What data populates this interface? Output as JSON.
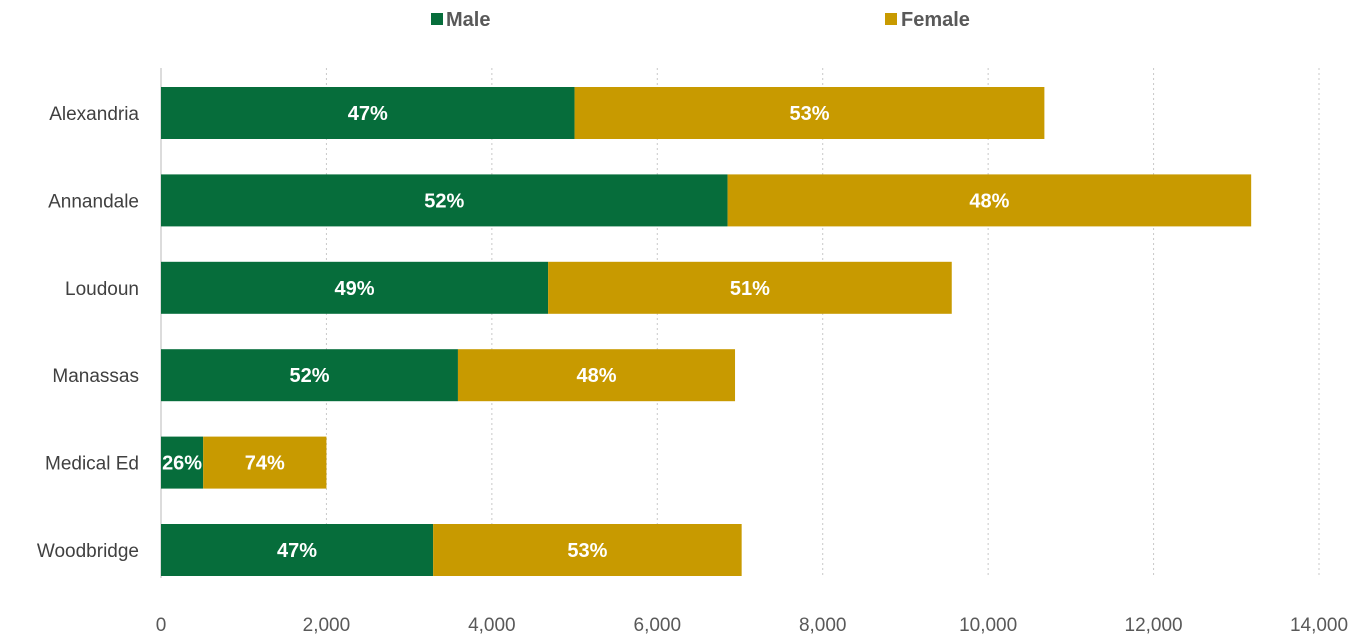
{
  "chart_data": {
    "type": "bar",
    "orientation": "horizontal",
    "stacked": true,
    "title": "",
    "xlabel": "",
    "ylabel": "",
    "xlim": [
      0,
      14000
    ],
    "x_ticks": [
      "0",
      "2,000",
      "4,000",
      "6,000",
      "8,000",
      "10,000",
      "12,000",
      "14,000"
    ],
    "x_tick_values": [
      0,
      2000,
      4000,
      6000,
      8000,
      10000,
      12000,
      14000
    ],
    "grid": "vertical dotted",
    "legend_position": "top",
    "categories": [
      "Alexandria",
      "Annandale",
      "Loudoun",
      "Manassas",
      "Medical Ed",
      "Woodbridge"
    ],
    "series": [
      {
        "name": "Male",
        "color": "#066d3b",
        "values": [
          5000,
          6850,
          4680,
          3590,
          510,
          3290
        ],
        "labels": [
          "47%",
          "52%",
          "49%",
          "52%",
          "26%",
          "47%"
        ]
      },
      {
        "name": "Female",
        "color": "#c89a00",
        "values": [
          5680,
          6330,
          4880,
          3350,
          1490,
          3730
        ],
        "labels": [
          "53%",
          "48%",
          "51%",
          "48%",
          "74%",
          "53%"
        ]
      }
    ]
  }
}
